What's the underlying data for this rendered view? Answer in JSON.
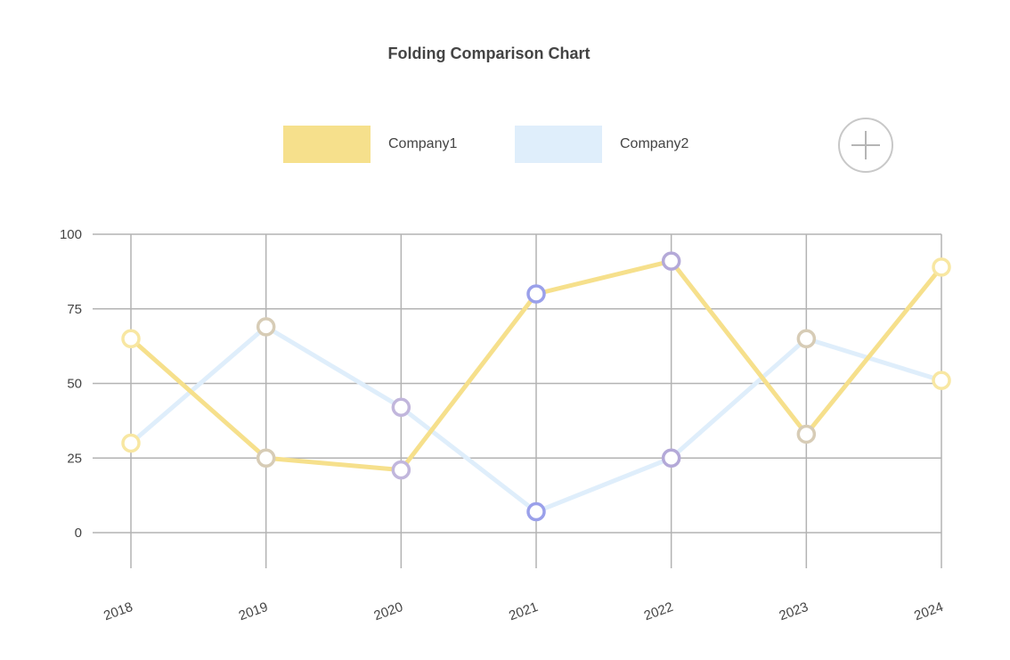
{
  "chart_data": {
    "type": "line",
    "title": "Folding Comparison Chart",
    "categories": [
      "2018",
      "2019",
      "2020",
      "2021",
      "2022",
      "2023",
      "2024"
    ],
    "series": [
      {
        "name": "Company1",
        "values": [
          65,
          25,
          21,
          80,
          91,
          33,
          89
        ],
        "color": "#f6e08c"
      },
      {
        "name": "Company2",
        "values": [
          30,
          69,
          42,
          7,
          25,
          65,
          51
        ],
        "color": "#dfeefb"
      }
    ],
    "point_colors": [
      [
        "#f8e7a2",
        "#d7ccb6",
        "#c1b6dc",
        "#9aa0ea",
        "#b4a9d8",
        "#d7ccb6",
        "#f8e7a2"
      ],
      [
        "#f8e7a2",
        "#d7ccb6",
        "#c1b6dc",
        "#9aa0ea",
        "#b4a9d8",
        "#d7ccb6",
        "#f8e7a2"
      ]
    ],
    "yticks": [
      0,
      25,
      50,
      75,
      100
    ],
    "ylim": [
      0,
      100
    ],
    "grid": true,
    "legend_position": "top-center"
  }
}
